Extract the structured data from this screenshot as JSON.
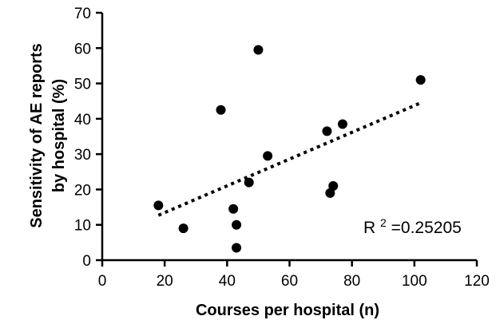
{
  "chart_data": {
    "type": "scatter",
    "title": "",
    "xlabel": "Courses per hospital (n)",
    "ylabel_lines": [
      "Sensitivity of AE reports",
      "by hospital (%)"
    ],
    "xlim": [
      0,
      120
    ],
    "ylim": [
      0,
      70
    ],
    "xticks": [
      0,
      20,
      40,
      60,
      80,
      100,
      120
    ],
    "yticks": [
      0,
      10,
      20,
      30,
      40,
      50,
      60,
      70
    ],
    "grid": false,
    "legend": "none",
    "points": [
      {
        "x": 18,
        "y": 15.5
      },
      {
        "x": 26,
        "y": 9
      },
      {
        "x": 38,
        "y": 42.5
      },
      {
        "x": 42,
        "y": 14.5
      },
      {
        "x": 43,
        "y": 10
      },
      {
        "x": 43,
        "y": 3.5
      },
      {
        "x": 47,
        "y": 22
      },
      {
        "x": 50,
        "y": 59.5
      },
      {
        "x": 53,
        "y": 29.5
      },
      {
        "x": 72,
        "y": 36.5
      },
      {
        "x": 73,
        "y": 19
      },
      {
        "x": 74,
        "y": 21
      },
      {
        "x": 77,
        "y": 38.5
      },
      {
        "x": 102,
        "y": 51
      }
    ],
    "trendline": {
      "style": "dotted",
      "x": [
        18,
        102
      ],
      "y": [
        12.7,
        44.5
      ]
    },
    "annotation": {
      "r_label": "R",
      "r_exponent": "2",
      "r_value": "=0.25205"
    },
    "colors": {
      "points": "#000000",
      "axis": "#000000",
      "trendline": "#000000"
    }
  }
}
